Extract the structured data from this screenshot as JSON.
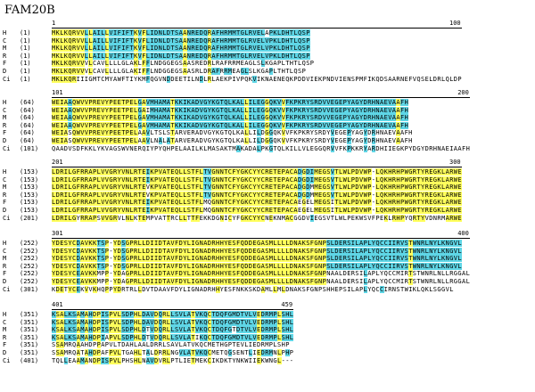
{
  "title": "FAM20B",
  "legend": {
    "identical_color": "#ffff5c",
    "similar_color": "#5fd6e6"
  },
  "blocks": [
    {
      "start_label": "1",
      "end_label": "100",
      "rows": [
        {
          "name": "H",
          "pos": "(1)",
          "seq": "MKLKQRVVLLAILLVIFIFTKVFLIDNLDTSAANREDQRAFHRMMTGLRVELAPKLDHTLQSP"
        },
        {
          "name": "C",
          "pos": "(1)",
          "seq": "MKLKQRVVLLAILLVIFIFTKVFLIDNLDTSAANREDQRAFHRMMTGLRVELVPKLDHTLQSP"
        },
        {
          "name": "M",
          "pos": "(1)",
          "seq": "MKLKQRVVLLAILLVIFIFTKVFLIDNLDTSAANREDQRAFHRMMTGLRVELVPKLDHTLQSP"
        },
        {
          "name": "R",
          "pos": "(1)",
          "seq": "MKLKQRVVLLAILLVIFIFTKVFLIDNLDTSAANREDQRAFHRMMTGLRVELVPKLDHTLQSP"
        },
        {
          "name": "F",
          "pos": "(1)",
          "seq": "MKLKQRVVVLCAVLLLLGLAKLFFLNDGGEGSAASREDRLRAFRRMEAGLSLKGAPLTHTLQSP"
        },
        {
          "name": "D",
          "pos": "(1)",
          "seq": "MKLKQRVVVLCAVLLLLGLAKIFFLNDGGEGSAASRLDRAFRRMEAGLSLKGAPLTHTLQSP"
        },
        {
          "name": "Ci",
          "pos": "(1)",
          "seq": "MKLKQRIIIGMTCMYAWFTIYKMFQGVNDDEETILNDLRLAEKPIVPQKVIKNAENEQKPDDVIEKPNDVIENSPMFIKQDSAARNEFVQSELDRLQLDP"
        }
      ]
    },
    {
      "start_label": "101",
      "end_label": "200",
      "rows": [
        {
          "name": "H",
          "pos": "(64)",
          "seq": "WEIAAQWVVPREVYPEETPELGAVMHAMATKKIKADVGYKGTQLKALLILEGGQKVVFKPKRYSRDVVEGEPYAGYDRHNAEVAAFH"
        },
        {
          "name": "C",
          "pos": "(64)",
          "seq": "WEIAAQWVVPREVYPEETPELGAIMHAMATKKIKADVGYKGTQLKALLILEGGQKVVFKPKRYSRDVVEGEPYAGYDRHNAEVAAFH"
        },
        {
          "name": "M",
          "pos": "(64)",
          "seq": "WEIAAQWVVPREVYPEETPELGAVMHAMATKKIKADVGYKGTQLKALLILEGGQKVVFKPKRYSRDVVEGEPYAGYDRHNAEVAAFH"
        },
        {
          "name": "R",
          "pos": "(64)",
          "seq": "WEIAAQWVVPREVYPEETPELGAVMHAMATKKIKADVGYKGTQLKALLILEGGQKVVFKPKRYSRDVVEGEPYAGYDRHNAEVAAFH"
        },
        {
          "name": "F",
          "pos": "(64)",
          "seq": "WEIASQWVVPREVYPEETPELAAVLTSLSTARVERADVGYKGTQLKALLILDGGQKVVFKPKRYSRDYVEGEPYAGYDRHNAEVAAFH"
        },
        {
          "name": "D",
          "pos": "(64)",
          "seq": "WEIASQWVVPREVYPEETPELAAVLNALATARVERADVGYKGTQLKALLILDGGQKVVFKPKRYSRDYVEGEPYAGYDRHNAEVAAFH"
        },
        {
          "name": "Ci",
          "pos": "(101)",
          "seq": "QAADVSDFKKLYKVAGSWVNERQIYPYQHPELAAILKLMASAKTMAKADALPKGTQLKILLVLEGGQRVVFKPKKRYARDHIIEGKPYDGYDRHNAEIAAFH"
        }
      ]
    },
    {
      "start_label": "201",
      "end_label": "300",
      "rows": [
        {
          "name": "H",
          "pos": "(153)",
          "seq": "LDRILGFRRAPLVVGRYVNLRTEIKPVATEQLLSTFLTVGNNTCFYGKCYYCRETEPACADGDIMEGSVTLWLPDVWP-LQKHRHPWGRTYREGKLARWE"
        },
        {
          "name": "C",
          "pos": "(153)",
          "seq": "LDRILGFRRAPLVVGRYVNLRTEIKPVATEQLLSTFLTVGNNTCFYGKCYYCRETEPACADGDIMEGSVTLWLPDVWP-LQKHRHPWGRTYREGKLARWE"
        },
        {
          "name": "M",
          "pos": "(153)",
          "seq": "LDRILGFRRAPLVVGRYVNLRTEVKPVATEQLLSTFLTVGNNTCFYGKCYYCRETEPACADGDMMEGSVTLWLPDVWP-LQKHRHPWGRTYREGKLARWE"
        },
        {
          "name": "R",
          "pos": "(153)",
          "seq": "LDRILGFRRAPLVVGRYVNLRTEVKPVATEQLLSTFLTVGNNTCFYGKCYYCRETEPACADGDMMEGSVTLWLPDVWP-LQKHRHPWGRTYREGKLARWE"
        },
        {
          "name": "F",
          "pos": "(153)",
          "seq": "LDRILGFRRAPLVVGRYVNLRTEIKPVATEQLLSTFLMQGNNTCFYGKCYYCRETEPACAEGELMEGSITLWLPDVWP-LQKHRHPWGRTYREGKLARWE"
        },
        {
          "name": "D",
          "pos": "(153)",
          "seq": "LDRILGFRRAPLVVGRYVNLRTEIKPVATEQLLSTFLMQGNNTCFYGKCYYCRETEPACAEGELMEGSITLWLPDVWP-LQKHRHPWGRTYREGKLARWE"
        },
        {
          "name": "Ci",
          "pos": "(201)",
          "seq": "LDRILGYRRAPSVVGRVLNLKTEMPVATTRCLLTTFEKKDGNICYFGKCYYCNEKNMACGGDVIEGSVTLWLPEKWSVFPEKLRHPYQRTYVDNRMARWE"
        }
      ]
    },
    {
      "start_label": "301",
      "end_label": "400",
      "rows": [
        {
          "name": "H",
          "pos": "(252)",
          "seq": "YDESYCDAVKKTSP-YDSGPRLLDIIDTAVFDYLIGNADRHHYESFQDDEGASMLLLLDNAKSFGNPSLDERSILAPLYQCCIIRVSTWNRLNYLKNGVL"
        },
        {
          "name": "C",
          "pos": "(252)",
          "seq": "YDESYCDAVKKTSP-YDSGPRLLDIIDTAVFDYLIGNADRHHYESFQDDEGASMLLLLDNAKSFGNPSLDERSILAPLYQCCIIRVSTWNRLNYLKNGVL"
        },
        {
          "name": "M",
          "pos": "(252)",
          "seq": "YDESYCDAVKKTSP-YDSGPRLLDIIDTAVFDYLIGNADRHHYESFQDDEGASMLLLLDNAKSFGNPSLDERSILAPLYQCCIIRVSTWNRLNYLKNGVL"
        },
        {
          "name": "R",
          "pos": "(252)",
          "seq": "YDESYCDAVKKTSP-YDSGPRLLDIIDTAVFDYLIGNADRHHYESFQDDEGASMLLLLDNAKSFGNPSLDERSILAPLYQCCIIRVSTWNRLNYLKNGVL"
        },
        {
          "name": "F",
          "pos": "(252)",
          "seq": "YDESYCEAVKKMPP-YDAGPRLLDIIDTAVFDYLIGNADRHHYESFQDDEGASMLLLLDNAKSFGNPNAALDERSILAPLYQCCMIRTSTWNRLNLLRGGAL"
        },
        {
          "name": "D",
          "pos": "(252)",
          "seq": "YDESYCEAVKKMPP-YDAGPRLLDIIDTAVFDYLIGNADRHHYESFQDDEGASMLLLLDNAKSFGNPNAALDERSILAPLYQCCMIRTSTWNRLNLLRGGAL"
        },
        {
          "name": "Ci",
          "pos": "(301)",
          "seq": "KDETYCEKVVKHQPPYDRTRLLDVTDAAVFDYLIGNADRHHYESFNKKSKDAMLLMLDNAKSFGNPSHHEPSILAPLYQCCIRNSTWIKLQKLSGGVL"
        }
      ]
    },
    {
      "start_label": "401",
      "end_label": "459",
      "rows": [
        {
          "name": "H",
          "pos": "(351)",
          "seq": "KSALKSAMAHDPISPVLSDPHLDAVDQRLLSVLATVKQCTDQFGMDTVLVEDRMPLSHL"
        },
        {
          "name": "C",
          "pos": "(351)",
          "seq": "KSALKSAMAHDPISPVLSDPHLDAVDQRLLSVLATVKQCTDQFGMDTVLVEDRMPLSHL"
        },
        {
          "name": "M",
          "pos": "(351)",
          "seq": "KSALKSAMAHDPISPVLSDPHLDTVDQRLLSVLATVKQCTDQFGTDTVLVEDRMPLSHL"
        },
        {
          "name": "R",
          "pos": "(351)",
          "seq": "KSALKSAMAHDPIAPVLSDPHLDTVDQRLLSVLATIKQCTDQFGMDTVLVEDRMPLSHL"
        },
        {
          "name": "F",
          "pos": "(351)",
          "seq": "SSAMRQAAHDPPAPVLTDAHLAALDRRLSAVLATVKQCMETHGPTEVLIEDRMPLSHP"
        },
        {
          "name": "D",
          "pos": "(351)",
          "seq": "SSAMRQATAHDPAFPVLTGAHLTALDRRLNGVLATVKQCMETQGSENTLIEDRMNLPHP"
        },
        {
          "name": "Ci",
          "pos": "(401)",
          "seq": "TQLLEAAMANDPISPVLPHSHLNAVDVRLPTLIETMEKCIKDKTYNKWIIEKWNGL---"
        }
      ]
    }
  ]
}
